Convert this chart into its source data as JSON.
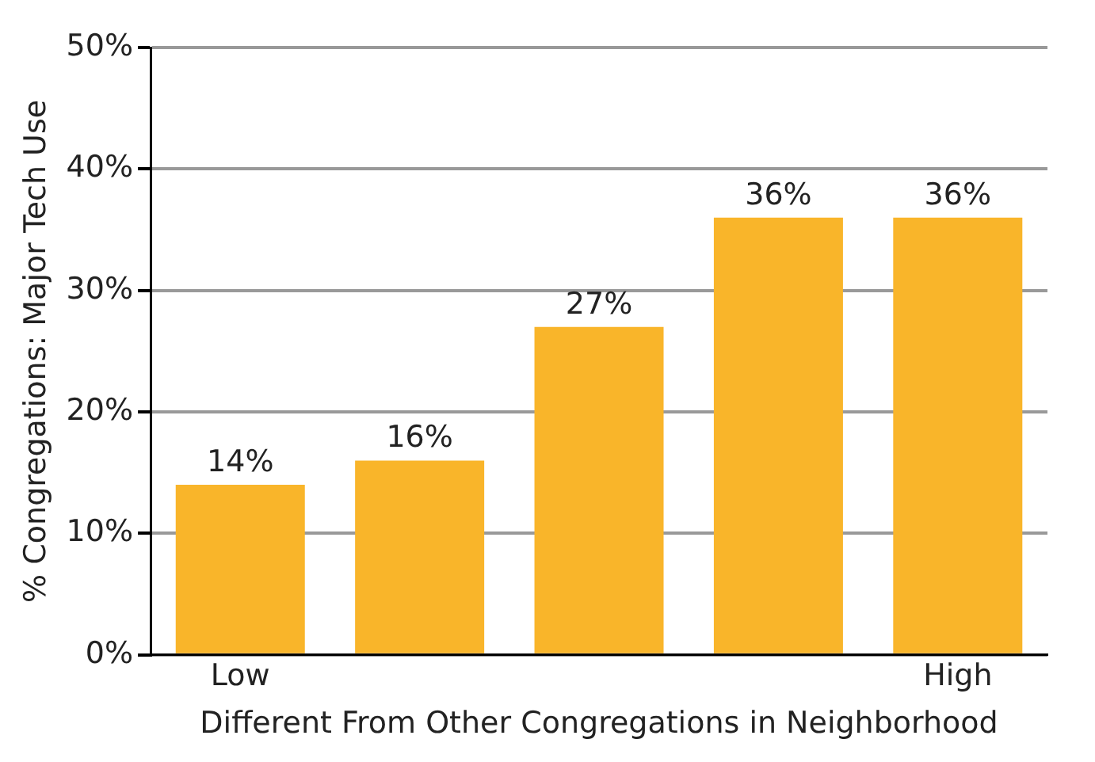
{
  "chart_data": {
    "type": "bar",
    "xlabel": "Different From Other Congregations in Neighborhood",
    "ylabel": "% Congregations: Major Tech Use",
    "categories": [
      "Low",
      null,
      null,
      null,
      "High"
    ],
    "values": [
      14,
      16,
      27,
      36,
      36
    ],
    "value_labels": [
      "14%",
      "16%",
      "27%",
      "36%",
      "36%"
    ],
    "color": "#f9b52a",
    "ylim": [
      0,
      50
    ],
    "yticks": [
      {
        "value": 0,
        "label": "0%"
      },
      {
        "value": 10,
        "label": "10%"
      },
      {
        "value": 20,
        "label": "20%"
      },
      {
        "value": 30,
        "label": "30%"
      },
      {
        "value": 40,
        "label": "40%"
      },
      {
        "value": 50,
        "label": "50%"
      }
    ],
    "grid": "y",
    "legend": false
  }
}
